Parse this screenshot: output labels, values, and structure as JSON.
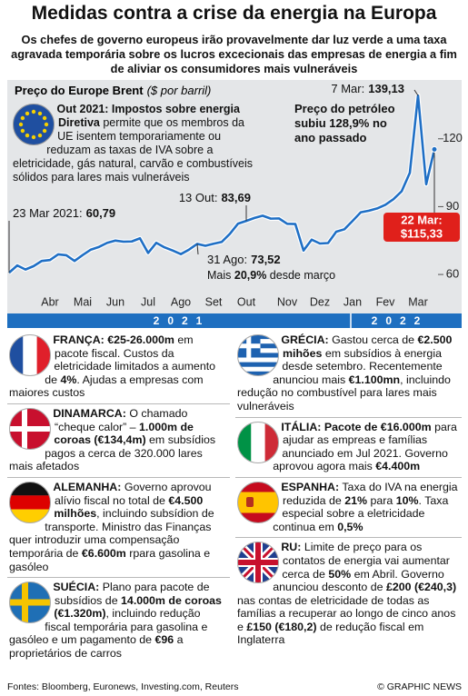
{
  "header": {
    "title": "Medidas contra a crise da energia na Europa",
    "subtitle": "Os chefes de governo europeus irão provavelmente dar luz verde a uma taxa agravada temporária sobre os lucros excecionais das empresas de energia a fim de aliviar os consumidores mais vulneráveis"
  },
  "chart_data": {
    "type": "line",
    "title": "Preço do Europe Brent",
    "ylabel": "($ por barril)",
    "categories": [
      null,
      null,
      null,
      null,
      null,
      "Abr",
      null,
      null,
      null,
      "Mai",
      null,
      null,
      null,
      "Jun",
      null,
      null,
      null,
      "Jul",
      null,
      null,
      null,
      "Ago",
      null,
      null,
      null,
      "Set",
      null,
      null,
      null,
      "Out",
      null,
      null,
      null,
      null,
      "Nov",
      null,
      null,
      null,
      "Dez",
      null,
      null,
      null,
      "Jan",
      null,
      null,
      null,
      "Fev",
      null,
      null,
      null,
      "Mar",
      null,
      null
    ],
    "values": [
      60.79,
      64,
      62.2,
      63.7,
      66,
      66.4,
      68.9,
      68.5,
      66,
      68.6,
      71,
      72.2,
      74,
      75,
      74.5,
      74.6,
      76,
      69.5,
      74,
      72,
      70.6,
      69,
      71,
      73.52,
      72.7,
      73.6,
      74.4,
      78,
      82.5,
      83.69,
      85,
      86,
      84.7,
      84.8,
      82.4,
      82.3,
      70.6,
      75.4,
      73.7,
      73.9,
      78.9,
      80,
      83.7,
      87.5,
      88.2,
      89.2,
      90.8,
      93.3,
      96.8,
      105,
      139.13,
      99.9,
      115.33
    ],
    "point_labels": [
      "23 Mar 2021:",
      null,
      null,
      null,
      null,
      null,
      null,
      null,
      null,
      null,
      null,
      null,
      null,
      null,
      null,
      null,
      null,
      null,
      null,
      null,
      null,
      null,
      null,
      "31 Ago:",
      null,
      null,
      null,
      null,
      null,
      "13 Out:",
      null,
      null,
      null,
      null,
      null,
      null,
      null,
      null,
      null,
      null,
      null,
      null,
      null,
      null,
      null,
      null,
      null,
      null,
      null,
      null,
      "7 Mar:",
      null,
      "22 Mar:"
    ],
    "value_labels": [
      "60,79",
      null,
      null,
      null,
      null,
      null,
      null,
      null,
      null,
      null,
      null,
      null,
      null,
      null,
      null,
      null,
      null,
      null,
      null,
      null,
      null,
      null,
      null,
      "73,52",
      null,
      null,
      null,
      null,
      null,
      "83,69",
      null,
      null,
      null,
      null,
      null,
      null,
      null,
      null,
      null,
      null,
      null,
      null,
      null,
      null,
      null,
      null,
      null,
      null,
      null,
      null,
      "139,13",
      null,
      "$115,33"
    ],
    "color": "#1f6fc5",
    "highlight_color": "#e0201b",
    "ylim": [
      52,
      142
    ],
    "yticks": [
      60,
      90,
      120
    ],
    "grid": false,
    "year_labels": [
      "2021",
      "2022"
    ],
    "notes": [
      {
        "segments": [
          {
            "text": "Mais ",
            "bold": false
          },
          {
            "text": "20,9%",
            "bold": true
          },
          {
            "text": " desde março",
            "bold": false
          }
        ]
      },
      {
        "segments": [
          {
            "text": "Preço do petróleo subiu 128,9% no ano passado",
            "bold": true
          }
        ]
      },
      {
        "segments": [
          {
            "text": "Out 2021: Impostos sobre energia Diretiva",
            "bold": true
          },
          {
            "text": " permite que os membros da UE isentem temporariamente ou reduzam as taxas de IVA sobre a eletricidade, gás natural, carvão e combustíveis sólidos para lares mais vulneráveis",
            "bold": false
          }
        ]
      }
    ]
  },
  "panels": [
    {
      "segments": [
        {
          "text": "FRANÇA: €25-26.000m",
          "bold": true
        },
        {
          "text": " em pacote fiscal. Custos da eletricidade limitados a aumento de ",
          "bold": false
        },
        {
          "text": "4%",
          "bold": true
        },
        {
          "text": ". Ajudas a empresas com maiores custos",
          "bold": false
        }
      ]
    },
    {
      "segments": [
        {
          "text": "DINAMARCA:",
          "bold": true
        },
        {
          "text": " O chamado “cheque calor” – ",
          "bold": false
        },
        {
          "text": "1.000m de coroas (€134,4m)",
          "bold": true
        },
        {
          "text": " em subsídios pagos a cerca de 320.000 lares mais afetados",
          "bold": false
        }
      ]
    },
    {
      "segments": [
        {
          "text": "ALEMANHA:",
          "bold": true
        },
        {
          "text": " Governo aprovou alívio fiscal no total de ",
          "bold": false
        },
        {
          "text": "€4.500 milhões",
          "bold": true
        },
        {
          "text": ", incluindo subsídion de transporte. Ministro das Finanças quer introduzir uma compensação temporária de ",
          "bold": false
        },
        {
          "text": "€6.600m",
          "bold": true
        },
        {
          "text": " rpara gasolina e gasóleo",
          "bold": false
        }
      ]
    },
    {
      "segments": [
        {
          "text": "SUÉCIA:",
          "bold": true
        },
        {
          "text": " Plano para pacote de subsídios de ",
          "bold": false
        },
        {
          "text": "14.000m de coroas (€1.320m)",
          "bold": true
        },
        {
          "text": ", incluindo redução fiscal temporária para gasolina e gasóleo e um pagamento de ",
          "bold": false
        },
        {
          "text": "€96",
          "bold": true
        },
        {
          "text": " a proprietários de carros",
          "bold": false
        }
      ]
    },
    {
      "segments": [
        {
          "text": "GRÉCIA:",
          "bold": true
        },
        {
          "text": " Gastou cerca de ",
          "bold": false
        },
        {
          "text": "€2.500 mihões",
          "bold": true
        },
        {
          "text": " em subsídios à energia desde setembro. Recentemente anunciou mais ",
          "bold": false
        },
        {
          "text": "€1.100mn",
          "bold": true
        },
        {
          "text": ", incluindo redução no combustível para lares mais vulneráveis",
          "bold": false
        }
      ]
    },
    {
      "segments": [
        {
          "text": "ITÁLIA: Pacote de €16.000m",
          "bold": true
        },
        {
          "text": " para ajudar as empreas e famílias anunciado em Jul 2021. Governo aprovou agora mais ",
          "bold": false
        },
        {
          "text": "€4.400m",
          "bold": true
        }
      ]
    },
    {
      "segments": [
        {
          "text": "ESPANHA:",
          "bold": true
        },
        {
          "text": " Taxa do IVA na energia reduzida de ",
          "bold": false
        },
        {
          "text": "21%",
          "bold": true
        },
        {
          "text": " para ",
          "bold": false
        },
        {
          "text": "10%",
          "bold": true
        },
        {
          "text": ". Taxa especial sobre a eletricidade continua em ",
          "bold": false
        },
        {
          "text": "0,5%",
          "bold": true
        }
      ]
    },
    {
      "segments": [
        {
          "text": "RU:",
          "bold": true
        },
        {
          "text": " Limite de preço para os contatos de energia vai aumentar cerca de ",
          "bold": false
        },
        {
          "text": "50%",
          "bold": true
        },
        {
          "text": " em Abril. Governo anunciou desconto de ",
          "bold": false
        },
        {
          "text": "£200 (€240,3)",
          "bold": true
        },
        {
          "text": " nas contas de eletricidade de todas as famílias a recuperar ao longo de cinco anos e ",
          "bold": false
        },
        {
          "text": "£150 (€180,2)",
          "bold": true
        },
        {
          "text": " de redução fiscal em Inglaterra",
          "bold": false
        }
      ]
    }
  ],
  "footer": {
    "source": "Fontes: Bloomberg, Euronews, Investing.com, Reuters",
    "credit": "© GRAPHIC NEWS"
  }
}
